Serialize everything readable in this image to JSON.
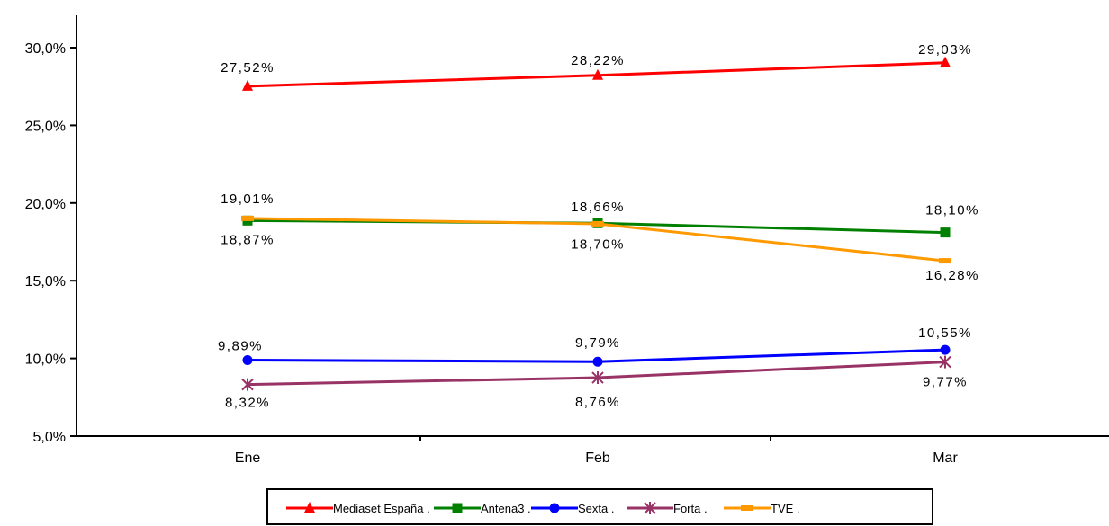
{
  "chart_data": {
    "type": "line",
    "categories": [
      "Ene",
      "Feb",
      "Mar"
    ],
    "ylim": [
      5,
      30
    ],
    "yticks": [
      5,
      10,
      15,
      20,
      25,
      30
    ],
    "ytick_labels": [
      "5,0%",
      "10,0%",
      "15,0%",
      "20,0%",
      "25,0%",
      "30,0%"
    ],
    "grid": false,
    "legend_position": "bottom",
    "series": [
      {
        "name": "Mediaset España .",
        "color": "#ff0000",
        "marker": "triangle",
        "values": [
          27.52,
          28.22,
          29.03
        ],
        "labels": [
          "27,52%",
          "28,22%",
          "29,03%"
        ],
        "label_pos": [
          "above",
          "above",
          "above"
        ]
      },
      {
        "name": "Antena3 .",
        "color": "#008000",
        "marker": "square",
        "values": [
          18.87,
          18.7,
          18.1
        ],
        "labels": [
          "18,87%",
          "18,70%",
          "18,10%"
        ],
        "label_pos": [
          "below",
          "below",
          "above"
        ]
      },
      {
        "name": "Sexta .",
        "color": "#0000ff",
        "marker": "circle",
        "values": [
          9.89,
          9.79,
          10.55
        ],
        "labels": [
          "9,89%",
          "9,79%",
          "10,55%"
        ],
        "label_pos": [
          "above",
          "above",
          "above"
        ]
      },
      {
        "name": "Forta .",
        "color": "#993366",
        "marker": "star",
        "values": [
          8.32,
          8.76,
          9.77
        ],
        "labels": [
          "8,32%",
          "8,76%",
          "9,77%"
        ],
        "label_pos": [
          "below",
          "below",
          "below"
        ]
      },
      {
        "name": "TVE .",
        "color": "#ff9900",
        "marker": "dash",
        "values": [
          19.01,
          18.66,
          16.28
        ],
        "labels": [
          "19,01%",
          "18,66%",
          "16,28%"
        ],
        "label_pos": [
          "above",
          "above",
          "below"
        ]
      }
    ]
  }
}
